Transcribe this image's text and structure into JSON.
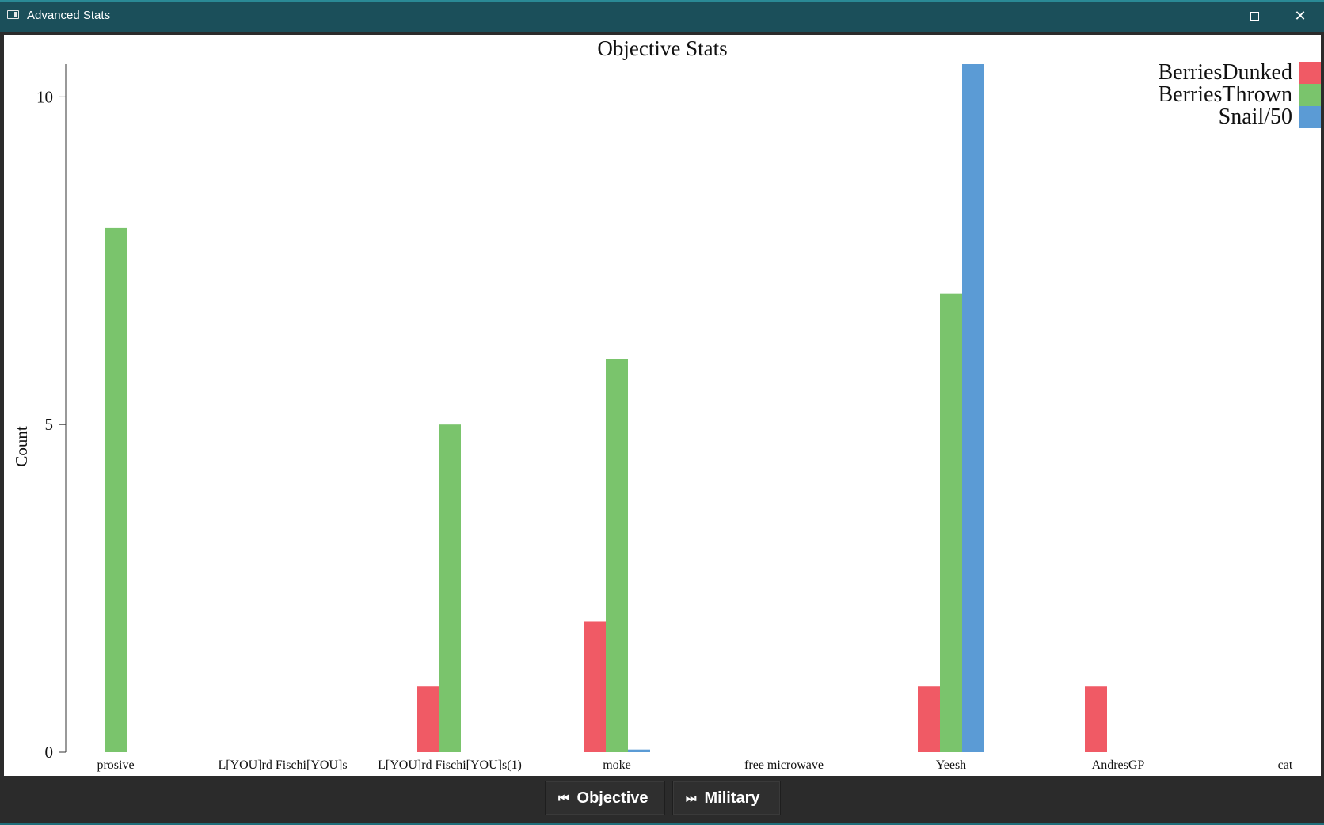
{
  "window": {
    "title": "Advanced Stats"
  },
  "chart_data": {
    "type": "bar",
    "title": "Objective Stats",
    "ylabel": "Count",
    "xlabel": "",
    "ylim": [
      0,
      10.5
    ],
    "yticks": [
      0,
      5,
      10
    ],
    "legend_position": "top-right",
    "categories": [
      "prosive",
      "L[YOU]rd Fischi[YOU]s",
      "L[YOU]rd Fischi[YOU]s(1)",
      "moke",
      "free microwave",
      "Yeesh",
      "AndresGP",
      "cat"
    ],
    "series": [
      {
        "name": "BerriesDunked",
        "color": "#f05a65",
        "values": [
          0,
          0,
          1,
          2,
          0,
          1,
          1,
          0
        ]
      },
      {
        "name": "BerriesThrown",
        "color": "#7ac46c",
        "values": [
          8,
          0,
          5,
          6,
          0,
          7,
          0,
          0
        ]
      },
      {
        "name": "Snail/50",
        "color": "#5b9bd5",
        "values": [
          0,
          0,
          0,
          0.04,
          0,
          10.5,
          0,
          0
        ]
      }
    ]
  },
  "nav": {
    "prev_label": "Objective",
    "next_label": "Military",
    "prev_icon": "skip-previous-icon",
    "next_icon": "skip-next-icon"
  }
}
